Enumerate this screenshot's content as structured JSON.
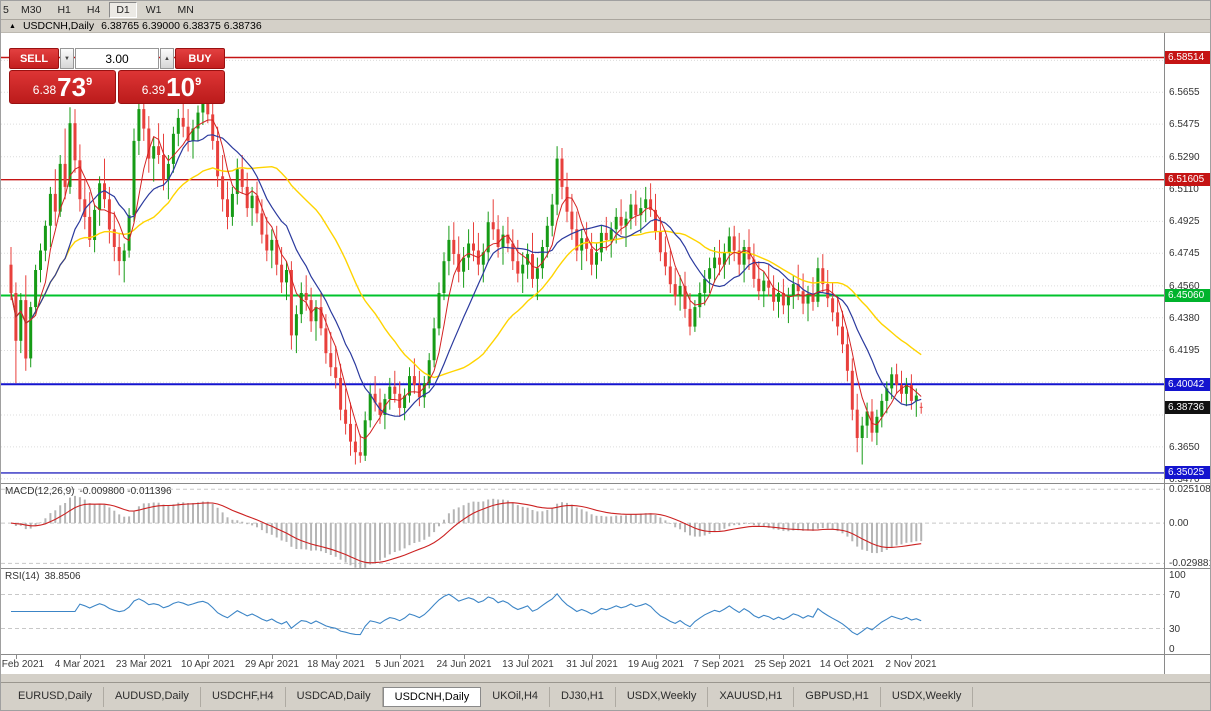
{
  "toolbar": {
    "timeframes": [
      "5",
      "M30",
      "H1",
      "H4",
      "D1",
      "W1",
      "MN"
    ],
    "active": "D1"
  },
  "titlebar": {
    "symbol": "USDCNH,Daily",
    "ohlc": "6.38765 6.39000 6.38375 6.38736"
  },
  "icons": {
    "collapse": "▲",
    "spin_down": "▼",
    "spin_up": "▲"
  },
  "trade_panel": {
    "sell_label": "SELL",
    "buy_label": "BUY",
    "volume": "3.00",
    "sell_price": {
      "small": "6.38",
      "big": "73",
      "sup": "9"
    },
    "buy_price": {
      "small": "6.39",
      "big": "10",
      "sup": "9"
    }
  },
  "indicators": {
    "macd": {
      "name": "MACD(12,26,9)",
      "values": "-0.009800 -0.011396",
      "ylim": [
        -0.034,
        0.029
      ],
      "axis_labels": [
        {
          "v": 0.025108,
          "t": "0.025108"
        },
        {
          "v": 0,
          "t": "0.00"
        },
        {
          "v": -0.029881,
          "t": "-0.029881"
        }
      ]
    },
    "rsi": {
      "name": "RSI(14)",
      "values": "38.8506",
      "ylim": [
        0,
        100
      ],
      "levels": [
        70,
        30
      ],
      "axis_labels": [
        {
          "v": 100,
          "t": "100"
        },
        {
          "v": 70,
          "t": "70"
        },
        {
          "v": 30,
          "t": "30"
        },
        {
          "v": 0,
          "t": "0"
        }
      ]
    }
  },
  "axis": {
    "price_labels": [
      6.5655,
      6.5475,
      6.529,
      6.511,
      6.4925,
      6.4745,
      6.456,
      6.438,
      6.4195,
      6.365,
      6.347
    ],
    "badges": [
      {
        "price": 6.58514,
        "label": "6.58514",
        "color": "#c51414"
      },
      {
        "price": 6.51605,
        "label": "6.51605",
        "color": "#c51414"
      },
      {
        "price": 6.4506,
        "label": "6.45060",
        "color": "#00b32c"
      },
      {
        "price": 6.40042,
        "label": "6.40042",
        "color": "#1414cf"
      },
      {
        "price": 6.38736,
        "label": "6.38736",
        "color": "#111111"
      },
      {
        "price": 6.35025,
        "label": "6.35025",
        "color": "#1414cf"
      }
    ],
    "hlines": [
      {
        "price": 6.58514,
        "color": "#c51414",
        "width": 1.4
      },
      {
        "price": 6.51605,
        "color": "#c51414",
        "width": 1.4
      },
      {
        "price": 6.4506,
        "color": "#00c32c",
        "width": 2
      },
      {
        "price": 6.40042,
        "color": "#1414cf",
        "width": 2
      },
      {
        "price": 6.35025,
        "color": "#2a2ac0",
        "width": 1.4
      }
    ]
  },
  "chart_data": {
    "type": "candlestick",
    "symbol": "USDCNH",
    "timeframe": "Daily",
    "ylim": [
      6.344,
      6.599
    ],
    "gridlines": [
      6.5835,
      6.5655,
      6.5475,
      6.529,
      6.511,
      6.4925,
      6.4745,
      6.456,
      6.438,
      6.4195,
      6.4015,
      6.383,
      6.365,
      6.347
    ],
    "colors": {
      "bull": "#169b16",
      "bear": "#e8403c",
      "ma_fast": "#d32222",
      "ma_mid": "#2b3a9e",
      "ma_slow": "#ffd400"
    },
    "ma_periods": {
      "fast": 5,
      "mid": 12,
      "slow": 30
    },
    "date_labels": [
      {
        "i": 1,
        "t": "13 Feb 2021"
      },
      {
        "i": 14,
        "t": "4 Mar 2021"
      },
      {
        "i": 27,
        "t": "23 Mar 2021"
      },
      {
        "i": 40,
        "t": "10 Apr 2021"
      },
      {
        "i": 53,
        "t": "29 Apr 2021"
      },
      {
        "i": 66,
        "t": "18 May 2021"
      },
      {
        "i": 79,
        "t": "5 Jun 2021"
      },
      {
        "i": 92,
        "t": "24 Jun 2021"
      },
      {
        "i": 105,
        "t": "13 Jul 2021"
      },
      {
        "i": 118,
        "t": "31 Jul 2021"
      },
      {
        "i": 131,
        "t": "19 Aug 2021"
      },
      {
        "i": 144,
        "t": "7 Sep 2021"
      },
      {
        "i": 157,
        "t": "25 Sep 2021"
      },
      {
        "i": 170,
        "t": "14 Oct 2021"
      },
      {
        "i": 183,
        "t": "2 Nov 2021"
      }
    ],
    "candles": [
      [
        6.468,
        6.478,
        6.448,
        6.452
      ],
      [
        6.452,
        6.458,
        6.401,
        6.425
      ],
      [
        6.425,
        6.452,
        6.418,
        6.448
      ],
      [
        6.448,
        6.462,
        6.408,
        6.415
      ],
      [
        6.415,
        6.447,
        6.41,
        6.444
      ],
      [
        6.444,
        6.468,
        6.44,
        6.465
      ],
      [
        6.465,
        6.48,
        6.458,
        6.476
      ],
      [
        6.476,
        6.493,
        6.47,
        6.49
      ],
      [
        6.49,
        6.512,
        6.478,
        6.508
      ],
      [
        6.508,
        6.522,
        6.49,
        6.498
      ],
      [
        6.498,
        6.53,
        6.495,
        6.525
      ],
      [
        6.525,
        6.545,
        6.505,
        6.512
      ],
      [
        6.512,
        6.557,
        6.508,
        6.548
      ],
      [
        6.548,
        6.556,
        6.52,
        6.527
      ],
      [
        6.527,
        6.536,
        6.498,
        6.505
      ],
      [
        6.505,
        6.516,
        6.488,
        6.495
      ],
      [
        6.495,
        6.509,
        6.478,
        6.482
      ],
      [
        6.482,
        6.502,
        6.475,
        6.499
      ],
      [
        6.499,
        6.518,
        6.49,
        6.514
      ],
      [
        6.514,
        6.528,
        6.5,
        6.505
      ],
      [
        6.505,
        6.512,
        6.48,
        6.488
      ],
      [
        6.488,
        6.498,
        6.47,
        6.478
      ],
      [
        6.478,
        6.486,
        6.462,
        6.47
      ],
      [
        6.47,
        6.48,
        6.458,
        6.476
      ],
      [
        6.476,
        6.5,
        6.472,
        6.496
      ],
      [
        6.496,
        6.545,
        6.492,
        6.538
      ],
      [
        6.538,
        6.564,
        6.53,
        6.556
      ],
      [
        6.556,
        6.562,
        6.538,
        6.545
      ],
      [
        6.545,
        6.552,
        6.52,
        6.528
      ],
      [
        6.528,
        6.54,
        6.515,
        6.535
      ],
      [
        6.535,
        6.548,
        6.525,
        6.53
      ],
      [
        6.53,
        6.542,
        6.51,
        6.516
      ],
      [
        6.516,
        6.53,
        6.505,
        6.525
      ],
      [
        6.525,
        6.546,
        6.52,
        6.542
      ],
      [
        6.542,
        6.556,
        6.535,
        6.551
      ],
      [
        6.551,
        6.56,
        6.54,
        6.546
      ],
      [
        6.546,
        6.556,
        6.532,
        6.538
      ],
      [
        6.538,
        6.55,
        6.528,
        6.545
      ],
      [
        6.545,
        6.558,
        6.538,
        6.554
      ],
      [
        6.554,
        6.564,
        6.547,
        6.559
      ],
      [
        6.559,
        6.566,
        6.548,
        6.553
      ],
      [
        6.553,
        6.56,
        6.533,
        6.538
      ],
      [
        6.538,
        6.546,
        6.512,
        6.518
      ],
      [
        6.518,
        6.53,
        6.498,
        6.505
      ],
      [
        6.505,
        6.515,
        6.488,
        6.495
      ],
      [
        6.495,
        6.512,
        6.49,
        6.508
      ],
      [
        6.508,
        6.528,
        6.502,
        6.522
      ],
      [
        6.522,
        6.53,
        6.508,
        6.512
      ],
      [
        6.512,
        6.52,
        6.495,
        6.5
      ],
      [
        6.5,
        6.512,
        6.49,
        6.507
      ],
      [
        6.507,
        6.515,
        6.492,
        6.497
      ],
      [
        6.497,
        6.505,
        6.48,
        6.485
      ],
      [
        6.485,
        6.495,
        6.47,
        6.476
      ],
      [
        6.476,
        6.488,
        6.466,
        6.482
      ],
      [
        6.482,
        6.49,
        6.462,
        6.468
      ],
      [
        6.468,
        6.478,
        6.452,
        6.458
      ],
      [
        6.458,
        6.47,
        6.448,
        6.465
      ],
      [
        6.465,
        6.47,
        6.42,
        6.428
      ],
      [
        6.428,
        6.445,
        6.418,
        6.44
      ],
      [
        6.44,
        6.458,
        6.435,
        6.452
      ],
      [
        6.452,
        6.462,
        6.442,
        6.448
      ],
      [
        6.448,
        6.455,
        6.43,
        6.436
      ],
      [
        6.436,
        6.448,
        6.425,
        6.444
      ],
      [
        6.444,
        6.452,
        6.428,
        6.432
      ],
      [
        6.432,
        6.44,
        6.412,
        6.418
      ],
      [
        6.418,
        6.43,
        6.405,
        6.41
      ],
      [
        6.41,
        6.422,
        6.398,
        6.404
      ],
      [
        6.404,
        6.412,
        6.38,
        6.386
      ],
      [
        6.386,
        6.398,
        6.372,
        6.378
      ],
      [
        6.378,
        6.39,
        6.36,
        6.368
      ],
      [
        6.368,
        6.378,
        6.355,
        6.362
      ],
      [
        6.362,
        6.372,
        6.356,
        6.36
      ],
      [
        6.36,
        6.385,
        6.357,
        6.38
      ],
      [
        6.38,
        6.4,
        6.376,
        6.395
      ],
      [
        6.395,
        6.405,
        6.385,
        6.39
      ],
      [
        6.39,
        6.398,
        6.378,
        6.383
      ],
      [
        6.383,
        6.395,
        6.375,
        6.392
      ],
      [
        6.392,
        6.404,
        6.386,
        6.399
      ],
      [
        6.399,
        6.408,
        6.39,
        6.395
      ],
      [
        6.395,
        6.402,
        6.382,
        6.387
      ],
      [
        6.387,
        6.398,
        6.38,
        6.394
      ],
      [
        6.394,
        6.41,
        6.39,
        6.405
      ],
      [
        6.405,
        6.415,
        6.395,
        6.4
      ],
      [
        6.4,
        6.408,
        6.388,
        6.393
      ],
      [
        6.393,
        6.405,
        6.387,
        6.401
      ],
      [
        6.401,
        6.418,
        6.398,
        6.414
      ],
      [
        6.414,
        6.438,
        6.41,
        6.432
      ],
      [
        6.432,
        6.458,
        6.428,
        6.452
      ],
      [
        6.452,
        6.475,
        6.448,
        6.47
      ],
      [
        6.47,
        6.49,
        6.462,
        6.482
      ],
      [
        6.482,
        6.492,
        6.468,
        6.474
      ],
      [
        6.474,
        6.484,
        6.458,
        6.464
      ],
      [
        6.464,
        6.478,
        6.455,
        6.472
      ],
      [
        6.472,
        6.488,
        6.465,
        6.48
      ],
      [
        6.48,
        6.492,
        6.47,
        6.476
      ],
      [
        6.476,
        6.486,
        6.462,
        6.468
      ],
      [
        6.468,
        6.48,
        6.458,
        6.475
      ],
      [
        6.475,
        6.498,
        6.47,
        6.492
      ],
      [
        6.492,
        6.505,
        6.482,
        6.488
      ],
      [
        6.488,
        6.496,
        6.472,
        6.478
      ],
      [
        6.478,
        6.49,
        6.468,
        6.485
      ],
      [
        6.485,
        6.495,
        6.475,
        6.48
      ],
      [
        6.48,
        6.488,
        6.465,
        6.47
      ],
      [
        6.47,
        6.482,
        6.458,
        6.463
      ],
      [
        6.463,
        6.475,
        6.452,
        6.468
      ],
      [
        6.468,
        6.48,
        6.46,
        6.474
      ],
      [
        6.474,
        6.486,
        6.455,
        6.46
      ],
      [
        6.46,
        6.472,
        6.448,
        6.466
      ],
      [
        6.466,
        6.482,
        6.46,
        6.478
      ],
      [
        6.478,
        6.495,
        6.472,
        6.49
      ],
      [
        6.49,
        6.508,
        6.484,
        6.502
      ],
      [
        6.502,
        6.535,
        6.496,
        6.528
      ],
      [
        6.528,
        6.534,
        6.505,
        6.512
      ],
      [
        6.512,
        6.52,
        6.492,
        6.498
      ],
      [
        6.498,
        6.508,
        6.482,
        6.488
      ],
      [
        6.488,
        6.498,
        6.47,
        6.476
      ],
      [
        6.476,
        6.488,
        6.465,
        6.483
      ],
      [
        6.483,
        6.492,
        6.47,
        6.477
      ],
      [
        6.477,
        6.486,
        6.462,
        6.468
      ],
      [
        6.468,
        6.48,
        6.46,
        6.475
      ],
      [
        6.475,
        6.49,
        6.47,
        6.486
      ],
      [
        6.486,
        6.495,
        6.476,
        6.482
      ],
      [
        6.482,
        6.492,
        6.472,
        6.488
      ],
      [
        6.488,
        6.5,
        6.48,
        6.495
      ],
      [
        6.495,
        6.505,
        6.485,
        6.49
      ],
      [
        6.49,
        6.498,
        6.478,
        6.494
      ],
      [
        6.494,
        6.508,
        6.488,
        6.502
      ],
      [
        6.502,
        6.51,
        6.49,
        6.496
      ],
      [
        6.496,
        6.506,
        6.486,
        6.5
      ],
      [
        6.5,
        6.512,
        6.492,
        6.505
      ],
      [
        6.505,
        6.514,
        6.495,
        6.499
      ],
      [
        6.499,
        6.508,
        6.482,
        6.487
      ],
      [
        6.487,
        6.495,
        6.47,
        6.475
      ],
      [
        6.475,
        6.484,
        6.462,
        6.467
      ],
      [
        6.467,
        6.476,
        6.452,
        6.457
      ],
      [
        6.457,
        6.466,
        6.445,
        6.45
      ],
      [
        6.45,
        6.462,
        6.442,
        6.456
      ],
      [
        6.456,
        6.464,
        6.438,
        6.443
      ],
      [
        6.443,
        6.452,
        6.428,
        6.433
      ],
      [
        6.433,
        6.448,
        6.43,
        6.444
      ],
      [
        6.444,
        6.458,
        6.438,
        6.452
      ],
      [
        6.452,
        6.465,
        6.445,
        6.46
      ],
      [
        6.46,
        6.472,
        6.452,
        6.466
      ],
      [
        6.466,
        6.478,
        6.458,
        6.472
      ],
      [
        6.472,
        6.482,
        6.462,
        6.468
      ],
      [
        6.468,
        6.48,
        6.46,
        6.475
      ],
      [
        6.475,
        6.489,
        6.468,
        6.484
      ],
      [
        6.484,
        6.49,
        6.47,
        6.476
      ],
      [
        6.476,
        6.486,
        6.462,
        6.468
      ],
      [
        6.468,
        6.482,
        6.458,
        6.478
      ],
      [
        6.478,
        6.488,
        6.465,
        6.471
      ],
      [
        6.471,
        6.48,
        6.455,
        6.46
      ],
      [
        6.46,
        6.47,
        6.448,
        6.453
      ],
      [
        6.453,
        6.464,
        6.444,
        6.459
      ],
      [
        6.459,
        6.468,
        6.45,
        6.455
      ],
      [
        6.455,
        6.462,
        6.442,
        6.447
      ],
      [
        6.447,
        6.458,
        6.438,
        6.452
      ],
      [
        6.452,
        6.46,
        6.44,
        6.445
      ],
      [
        6.445,
        6.455,
        6.435,
        6.45
      ],
      [
        6.45,
        6.462,
        6.443,
        6.457
      ],
      [
        6.457,
        6.468,
        6.448,
        6.453
      ],
      [
        6.453,
        6.463,
        6.44,
        6.446
      ],
      [
        6.446,
        6.456,
        6.436,
        6.451
      ],
      [
        6.451,
        6.461,
        6.442,
        6.447
      ],
      [
        6.447,
        6.472,
        6.444,
        6.466
      ],
      [
        6.466,
        6.474,
        6.452,
        6.457
      ],
      [
        6.457,
        6.465,
        6.444,
        6.449
      ],
      [
        6.449,
        6.458,
        6.436,
        6.441
      ],
      [
        6.441,
        6.45,
        6.428,
        6.433
      ],
      [
        6.433,
        6.442,
        6.418,
        6.423
      ],
      [
        6.423,
        6.43,
        6.402,
        6.408
      ],
      [
        6.408,
        6.415,
        6.38,
        6.386
      ],
      [
        6.386,
        6.395,
        6.362,
        6.37
      ],
      [
        6.37,
        6.382,
        6.355,
        6.377
      ],
      [
        6.377,
        6.39,
        6.37,
        6.385
      ],
      [
        6.385,
        6.392,
        6.368,
        6.373
      ],
      [
        6.373,
        6.386,
        6.366,
        6.382
      ],
      [
        6.382,
        6.395,
        6.376,
        6.391
      ],
      [
        6.391,
        6.402,
        6.384,
        6.398
      ],
      [
        6.398,
        6.41,
        6.392,
        6.406
      ],
      [
        6.406,
        6.412,
        6.395,
        6.4
      ],
      [
        6.4,
        6.408,
        6.39,
        6.395
      ],
      [
        6.395,
        6.404,
        6.388,
        6.4
      ],
      [
        6.4,
        6.406,
        6.386,
        6.391
      ],
      [
        6.391,
        6.398,
        6.382,
        6.394
      ],
      [
        6.38765,
        6.39,
        6.38375,
        6.38736
      ]
    ]
  },
  "tabs": {
    "items": [
      "EURUSD,Daily",
      "AUDUSD,Daily",
      "USDCHF,H4",
      "USDCAD,Daily",
      "USDCNH,Daily",
      "UKOil,H4",
      "DJ30,H1",
      "USDX,Weekly",
      "XAUUSD,H1",
      "GBPUSD,H1",
      "USDX,Weekly"
    ],
    "active_index": 4
  }
}
